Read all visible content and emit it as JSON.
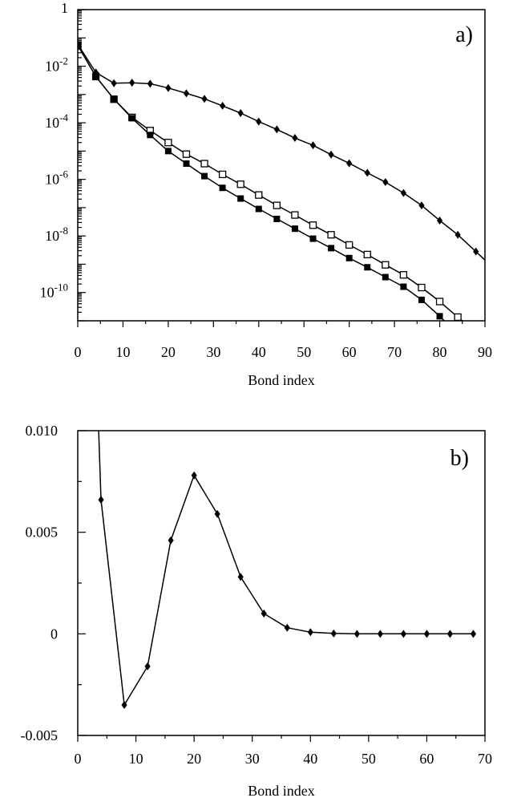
{
  "chart_data": [
    {
      "type": "line",
      "panel_label": "a)",
      "xlabel": "Bond index",
      "ylabel": "",
      "xlim": [
        0,
        90
      ],
      "ylim": [
        1e-11,
        1
      ],
      "y_scale": "log",
      "x_ticks": [
        0,
        10,
        20,
        30,
        40,
        50,
        60,
        70,
        80,
        90
      ],
      "x_tick_labels": [
        "0",
        "10",
        "20",
        "30",
        "40",
        "50",
        "60",
        "70",
        "80",
        "90"
      ],
      "y_ticks": [
        1,
        0.01,
        0.0001,
        1e-06,
        1e-08,
        1e-10
      ],
      "y_tick_labels": [
        {
          "base": "1",
          "exp": ""
        },
        {
          "base": "10",
          "exp": "-2"
        },
        {
          "base": "10",
          "exp": "-4"
        },
        {
          "base": "10",
          "exp": "-6"
        },
        {
          "base": "10",
          "exp": "-8"
        },
        {
          "base": "10",
          "exp": "-10"
        }
      ],
      "series": [
        {
          "marker": "filled-diamond",
          "x": [
            0,
            4,
            8,
            12,
            16,
            20,
            24,
            28,
            32,
            36,
            40,
            44,
            48,
            52,
            56,
            60,
            64,
            68,
            72,
            76,
            80,
            84,
            88,
            90
          ],
          "y": [
            0.06,
            0.006,
            0.0025,
            0.0026,
            0.0024,
            0.0017,
            0.0011,
            0.0007,
            0.0004,
            0.00022,
            0.00011,
            5.8e-05,
            2.9e-05,
            1.6e-05,
            7.5e-06,
            3.7e-06,
            1.7e-06,
            8e-07,
            3.3e-07,
            1.2e-07,
            3.5e-08,
            1.1e-08,
            2.8e-09,
            1.4e-09
          ]
        },
        {
          "marker": "open-square",
          "x": [
            0,
            4,
            8,
            12,
            16,
            20,
            24,
            28,
            32,
            36,
            40,
            44,
            48,
            52,
            56,
            60,
            64,
            68,
            72,
            76,
            80,
            84,
            85
          ],
          "y": [
            0.055,
            0.0043,
            0.00068,
            0.000155,
            5.3e-05,
            2e-05,
            7.8e-06,
            3.6e-06,
            1.5e-06,
            6.7e-07,
            2.8e-07,
            1.2e-07,
            5.5e-08,
            2.4e-08,
            1.1e-08,
            4.8e-09,
            2.2e-09,
            9.5e-10,
            4.2e-10,
            1.5e-10,
            4.8e-11,
            1.35e-11,
            1e-11
          ]
        },
        {
          "marker": "filled-square",
          "x": [
            0,
            4,
            8,
            12,
            16,
            20,
            24,
            28,
            32,
            36,
            40,
            44,
            48,
            52,
            56,
            60,
            64,
            68,
            72,
            76,
            80,
            81
          ],
          "y": [
            0.055,
            0.0043,
            0.00068,
            0.000145,
            3.7e-05,
            1e-05,
            3.6e-06,
            1.3e-06,
            5e-07,
            2.1e-07,
            9e-08,
            4e-08,
            1.8e-08,
            8e-09,
            3.7e-09,
            1.65e-09,
            7.8e-10,
            3.5e-10,
            1.6e-10,
            5.5e-11,
            1.45e-11,
            1e-11
          ]
        }
      ]
    },
    {
      "type": "line",
      "panel_label": "b)",
      "xlabel": "Bond index",
      "ylabel": "",
      "xlim": [
        0,
        70
      ],
      "ylim": [
        -0.005,
        0.01
      ],
      "x_ticks": [
        0,
        10,
        20,
        30,
        40,
        50,
        60,
        70
      ],
      "x_tick_labels": [
        "0",
        "10",
        "20",
        "30",
        "40",
        "50",
        "60",
        "70"
      ],
      "y_ticks": [
        0.01,
        0.005,
        0,
        -0.005
      ],
      "y_tick_labels": [
        "0.010",
        "0.005",
        "0",
        "-0.005"
      ],
      "series": [
        {
          "marker": "filled-diamond",
          "x": [
            3.6,
            4,
            8,
            12,
            16,
            20,
            24,
            28,
            32,
            36,
            40,
            44,
            48,
            52,
            56,
            60,
            64,
            68
          ],
          "y": [
            0.01,
            0.0066,
            -0.0035,
            -0.0016,
            0.0046,
            0.0078,
            0.0059,
            0.0028,
            0.001,
            0.0003,
            8e-05,
            2e-05,
            0,
            0,
            0,
            0,
            0,
            0
          ],
          "marker_from_index": 1
        }
      ]
    }
  ]
}
